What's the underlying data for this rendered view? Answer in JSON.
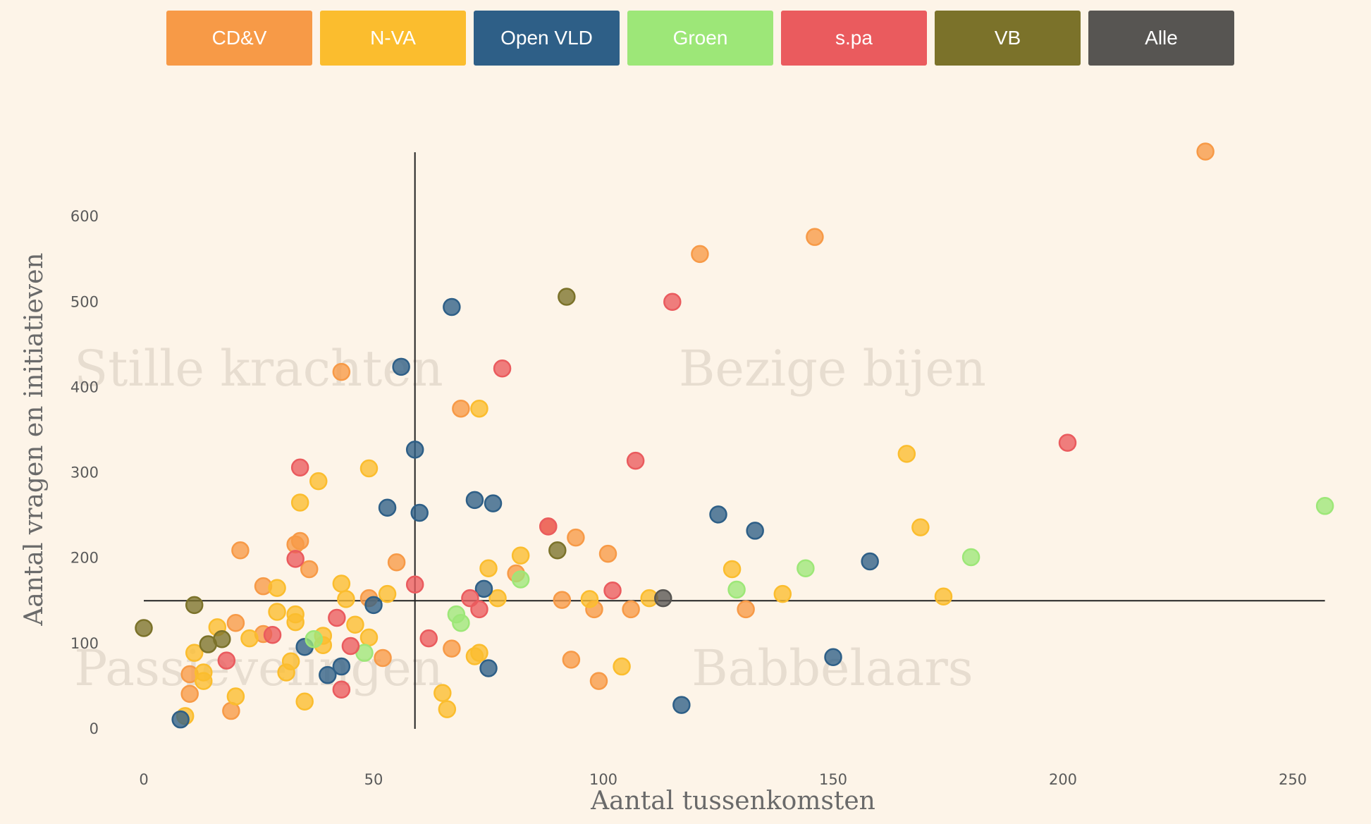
{
  "filters": [
    {
      "label": "CD&V",
      "color": "#f79a47"
    },
    {
      "label": "N-VA",
      "color": "#fbbd2e"
    },
    {
      "label": "Open VLD",
      "color": "#2e5f87"
    },
    {
      "label": "Groen",
      "color": "#9de778"
    },
    {
      "label": "s.pa",
      "color": "#ea5b5e"
    },
    {
      "label": "VB",
      "color": "#7b722a"
    },
    {
      "label": "Alle",
      "color": "#575552"
    }
  ],
  "chart_data": {
    "type": "scatter",
    "xlabel": "Aantal tussenkomsten",
    "ylabel": "Aantal vragen en initiatieven",
    "xlim": [
      0,
      260
    ],
    "ylim": [
      0,
      680
    ],
    "x_ticks": [
      0,
      50,
      100,
      150,
      200,
      250
    ],
    "y_ticks": [
      0,
      100,
      200,
      300,
      400,
      500,
      600
    ],
    "grid": false,
    "reference_lines": {
      "x": 59,
      "y": 150
    },
    "quadrant_labels": {
      "top_left": "Stille krachten",
      "top_right": "Bezige bijen",
      "bottom_left": "Passievelingen",
      "bottom_right": "Babbelaars"
    },
    "series": [
      {
        "name": "CD&V",
        "color": "#f79a47",
        "points": [
          [
            231,
            676
          ],
          [
            146,
            576
          ],
          [
            121,
            556
          ],
          [
            43,
            418
          ],
          [
            69,
            375
          ],
          [
            21,
            209
          ],
          [
            33,
            216
          ],
          [
            34,
            220
          ],
          [
            36,
            187
          ],
          [
            26,
            167
          ],
          [
            55,
            195
          ],
          [
            49,
            153
          ],
          [
            20,
            124
          ],
          [
            26,
            111
          ],
          [
            52,
            83
          ],
          [
            19,
            21
          ],
          [
            10,
            41
          ],
          [
            10,
            64
          ],
          [
            67,
            94
          ],
          [
            88,
            237
          ],
          [
            94,
            224
          ],
          [
            101,
            205
          ],
          [
            81,
            182
          ],
          [
            91,
            151
          ],
          [
            98,
            140
          ],
          [
            93,
            81
          ],
          [
            99,
            56
          ],
          [
            106,
            140
          ],
          [
            131,
            140
          ]
        ]
      },
      {
        "name": "N-VA",
        "color": "#fbbd2e",
        "points": [
          [
            73,
            375
          ],
          [
            49,
            305
          ],
          [
            38,
            290
          ],
          [
            34,
            265
          ],
          [
            29,
            165
          ],
          [
            43,
            170
          ],
          [
            44,
            152
          ],
          [
            53,
            158
          ],
          [
            29,
            137
          ],
          [
            33,
            134
          ],
          [
            33,
            125
          ],
          [
            39,
            109
          ],
          [
            39,
            98
          ],
          [
            46,
            122
          ],
          [
            49,
            107
          ],
          [
            23,
            106
          ],
          [
            16,
            119
          ],
          [
            11,
            89
          ],
          [
            13,
            66
          ],
          [
            13,
            56
          ],
          [
            20,
            38
          ],
          [
            9,
            15
          ],
          [
            31,
            66
          ],
          [
            32,
            79
          ],
          [
            35,
            32
          ],
          [
            65,
            42
          ],
          [
            66,
            23
          ],
          [
            72,
            85
          ],
          [
            73,
            89
          ],
          [
            75,
            188
          ],
          [
            77,
            153
          ],
          [
            82,
            203
          ],
          [
            97,
            152
          ],
          [
            104,
            73
          ],
          [
            110,
            153
          ],
          [
            128,
            187
          ],
          [
            139,
            158
          ],
          [
            166,
            322
          ],
          [
            169,
            236
          ],
          [
            174,
            155
          ]
        ]
      },
      {
        "name": "Open VLD",
        "color": "#2e5f87",
        "points": [
          [
            67,
            494
          ],
          [
            56,
            424
          ],
          [
            59,
            327
          ],
          [
            53,
            259
          ],
          [
            60,
            253
          ],
          [
            72,
            268
          ],
          [
            76,
            264
          ],
          [
            74,
            164
          ],
          [
            50,
            145
          ],
          [
            35,
            96
          ],
          [
            40,
            63
          ],
          [
            43,
            73
          ],
          [
            75,
            71
          ],
          [
            8,
            11
          ],
          [
            117,
            28
          ],
          [
            125,
            251
          ],
          [
            133,
            232
          ],
          [
            150,
            84
          ],
          [
            158,
            196
          ]
        ]
      },
      {
        "name": "Groen",
        "color": "#9de778",
        "points": [
          [
            82,
            175
          ],
          [
            37,
            105
          ],
          [
            48,
            89
          ],
          [
            68,
            134
          ],
          [
            69,
            124
          ],
          [
            129,
            163
          ],
          [
            144,
            188
          ],
          [
            180,
            201
          ],
          [
            257,
            261
          ]
        ]
      },
      {
        "name": "s.pa",
        "color": "#ea5b5e",
        "points": [
          [
            115,
            500
          ],
          [
            78,
            422
          ],
          [
            107,
            314
          ],
          [
            201,
            335
          ],
          [
            34,
            306
          ],
          [
            33,
            199
          ],
          [
            59,
            169
          ],
          [
            88,
            237
          ],
          [
            102,
            162
          ],
          [
            71,
            153
          ],
          [
            73,
            140
          ],
          [
            62,
            106
          ],
          [
            42,
            130
          ],
          [
            45,
            97
          ],
          [
            28,
            110
          ],
          [
            18,
            80
          ],
          [
            43,
            46
          ]
        ]
      },
      {
        "name": "VB",
        "color": "#7b722a",
        "points": [
          [
            92,
            506
          ],
          [
            90,
            209
          ],
          [
            11,
            145
          ],
          [
            0,
            118
          ],
          [
            17,
            105
          ],
          [
            14,
            99
          ]
        ]
      },
      {
        "name": "Alle",
        "color": "#575552",
        "points": [
          [
            113,
            153
          ]
        ]
      }
    ]
  }
}
